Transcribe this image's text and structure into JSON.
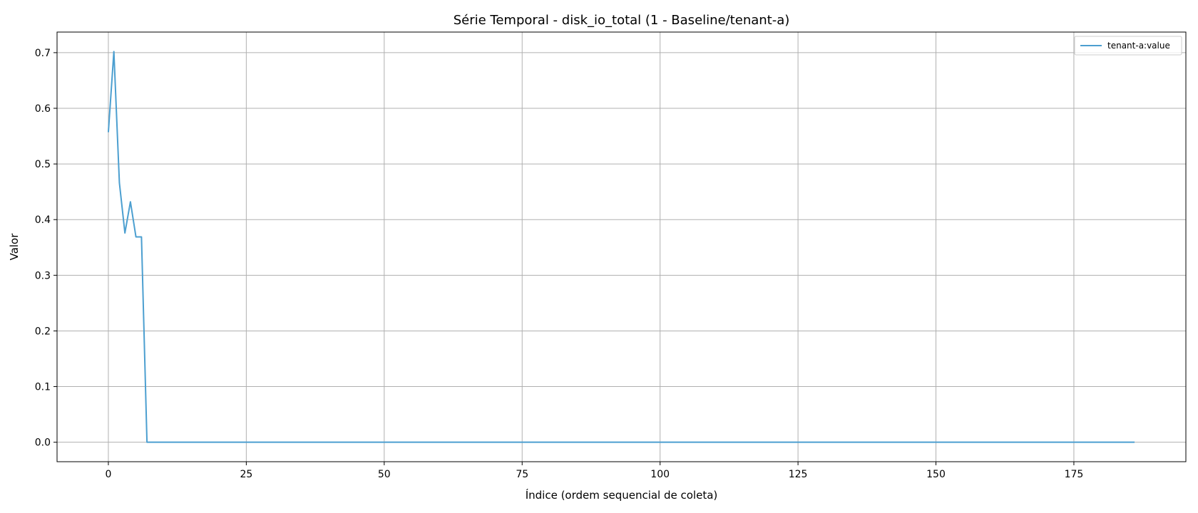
{
  "chart_data": {
    "type": "line",
    "title": "Série Temporal - disk_io_total (1 - Baseline/tenant-a)",
    "xlabel": "Índice (ordem sequencial de coleta)",
    "ylabel": "Valor",
    "xlim": [
      -9.3,
      195.3
    ],
    "ylim": [
      -0.035,
      0.737
    ],
    "xticks": [
      0,
      25,
      50,
      75,
      100,
      125,
      150,
      175
    ],
    "yticks": [
      0.0,
      0.1,
      0.2,
      0.3,
      0.4,
      0.5,
      0.6,
      0.7
    ],
    "xtick_labels": [
      "0",
      "25",
      "50",
      "75",
      "100",
      "125",
      "150",
      "175"
    ],
    "ytick_labels": [
      "0.0",
      "0.1",
      "0.2",
      "0.3",
      "0.4",
      "0.5",
      "0.6",
      "0.7"
    ],
    "grid": true,
    "legend_position": "top-right",
    "series": [
      {
        "name": "tenant-a:value",
        "color": "#4c9fd0",
        "x": [
          0,
          1,
          2,
          3,
          4,
          5,
          6,
          7,
          186
        ],
        "y": [
          0.557,
          0.702,
          0.466,
          0.376,
          0.432,
          0.369,
          0.369,
          0.0,
          0.0
        ]
      }
    ]
  }
}
